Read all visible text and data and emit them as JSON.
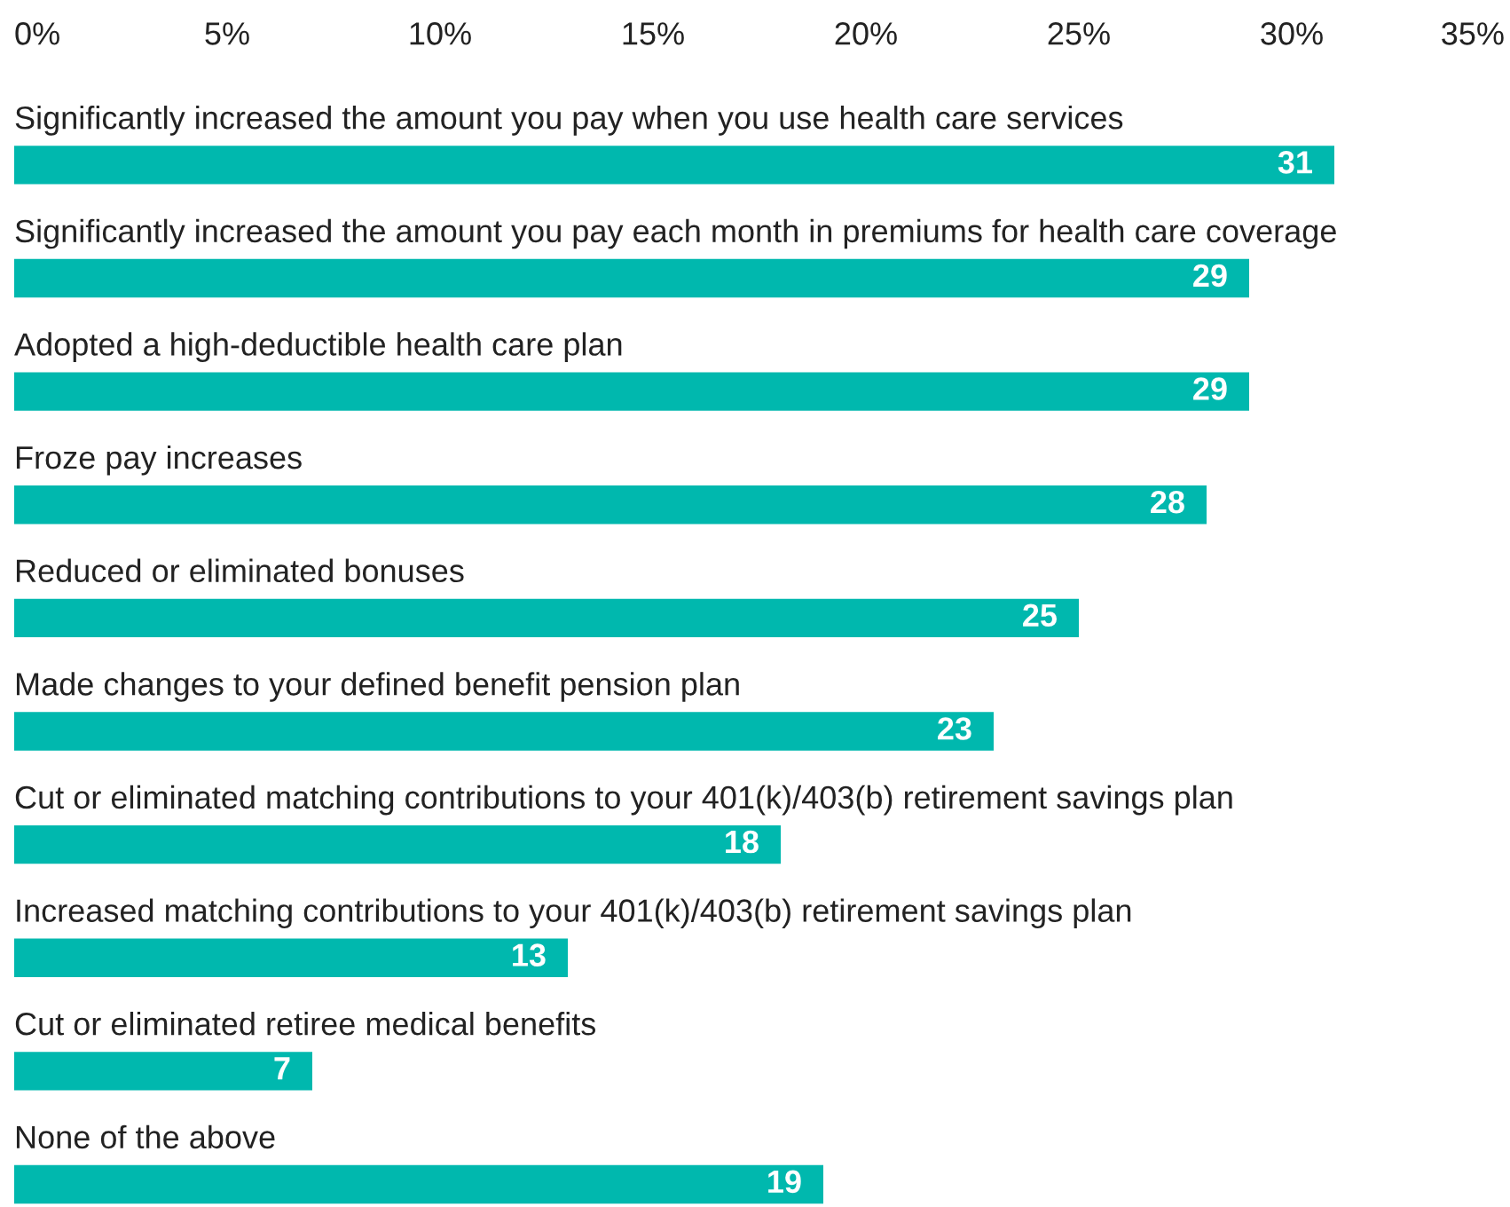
{
  "chart_data": {
    "type": "bar",
    "orientation": "horizontal",
    "categories": [
      "Significantly increased the amount you pay when you use health care services",
      "Significantly increased the amount you pay each month in premiums for health care coverage",
      "Adopted a high-deductible health care plan",
      "Froze pay increases",
      "Reduced or eliminated bonuses",
      "Made changes to your defined benefit pension plan",
      "Cut or eliminated matching contributions to your 401(k)/403(b) retirement savings plan",
      "Increased matching contributions to your 401(k)/403(b) retirement savings plan",
      "Cut or eliminated retiree medical benefits",
      "None of the above"
    ],
    "values": [
      31,
      29,
      29,
      28,
      25,
      23,
      18,
      13,
      7,
      19
    ],
    "color": "#00b8ae",
    "xlim": [
      0,
      35
    ],
    "xticks": [
      {
        "value": 0,
        "label": "0%"
      },
      {
        "value": 5,
        "label": "5%"
      },
      {
        "value": 10,
        "label": "10%"
      },
      {
        "value": 15,
        "label": "15%"
      },
      {
        "value": 20,
        "label": "20%"
      },
      {
        "value": 25,
        "label": "25%"
      },
      {
        "value": 30,
        "label": "30%"
      },
      {
        "value": 35,
        "label": "35%"
      }
    ],
    "data_labels": true,
    "grid": false
  }
}
